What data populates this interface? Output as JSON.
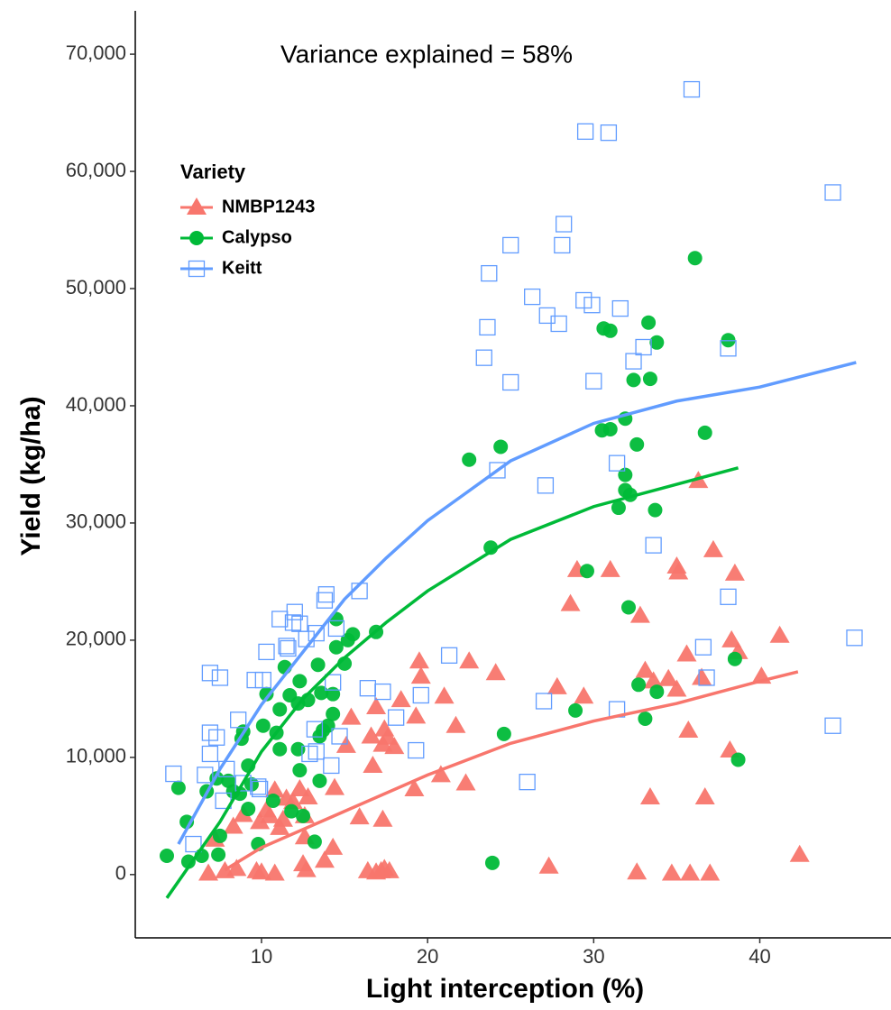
{
  "chart_data": {
    "type": "scatter",
    "annotation": "Variance explained = 58%",
    "x_label": "Light interception (%)",
    "y_label": "Yield (kg/ha)",
    "legend_title": "Variety",
    "legend_position": "upper left",
    "xlim": [
      2.4,
      47.9
    ],
    "ylim": [
      -5400,
      73700
    ],
    "xticks": [
      10,
      20,
      30,
      40
    ],
    "yticks": [
      0,
      {
        "value": 10000,
        "label": "10,000"
      },
      {
        "value": 20000,
        "label": "20,000"
      },
      {
        "value": 30000,
        "label": "30,000"
      },
      {
        "value": 40000,
        "label": "40,000"
      },
      {
        "value": 50000,
        "label": "50,000"
      },
      {
        "value": 60000,
        "label": "60,000"
      },
      {
        "value": 70000,
        "label": "70,000"
      }
    ],
    "series": [
      {
        "name": "NMBP1243",
        "color": "#F8766D",
        "marker": "triangle",
        "x": [
          36.3,
          29,
          31,
          35,
          35.1,
          37.2,
          38.5,
          28.6,
          32.8,
          41.2,
          38.3,
          38.7,
          40.1,
          35.6,
          33.1,
          33.6,
          34.5,
          36.5,
          35,
          29.4,
          27.8,
          35.7,
          38.2,
          33.4,
          36.7,
          42.4,
          27.3,
          32.6,
          34.7,
          35.8,
          37,
          19.5,
          19.6,
          22.5,
          24.1,
          21,
          21.7,
          19.3,
          18.4,
          16.9,
          17.4,
          17.6,
          16.6,
          17.3,
          18,
          15.4,
          15.1,
          16.7,
          19.2,
          20.8,
          22.3,
          15.9,
          17.3,
          14.4,
          12.3,
          11.5,
          11.9,
          10.8,
          10.3,
          10.5,
          11.3,
          11.1,
          9.9,
          8.9,
          8.3,
          7.2,
          12.8,
          12.6,
          12.6,
          14.3,
          13.8,
          12.5,
          12.7,
          16.4,
          17.4,
          17.7,
          17.2,
          16.9,
          9.7,
          10,
          10.8,
          8.5,
          6.8,
          7.8
        ],
        "values": [
          33600,
          26000,
          26000,
          26300,
          25800,
          27700,
          25700,
          23100,
          22100,
          20400,
          20000,
          19000,
          16900,
          18800,
          17400,
          16500,
          16700,
          16800,
          15800,
          15200,
          16000,
          12300,
          10600,
          6600,
          6600,
          1700,
          700,
          200,
          100,
          100,
          100,
          18200,
          16900,
          18200,
          17200,
          15200,
          12700,
          13500,
          14900,
          14300,
          12400,
          11700,
          11800,
          11100,
          10900,
          13400,
          11000,
          9300,
          7300,
          8500,
          7800,
          4900,
          4700,
          7400,
          7300,
          6500,
          6200,
          7200,
          5500,
          5000,
          4700,
          4000,
          4500,
          5100,
          4100,
          3000,
          6600,
          5000,
          3200,
          2300,
          1200,
          900,
          400,
          300,
          500,
          300,
          300,
          200,
          300,
          200,
          100,
          500,
          100,
          300
        ],
        "fit": {
          "x": [
            7.8,
            10,
            15,
            20,
            25,
            30,
            35,
            40,
            42.3
          ],
          "values": [
            400,
            2300,
            5400,
            8500,
            11200,
            13100,
            14600,
            16500,
            17300
          ]
        }
      },
      {
        "name": "Calypso",
        "color": "#00BA38",
        "marker": "circle",
        "x": [
          36.1,
          33.3,
          30.6,
          31,
          33.8,
          38.1,
          33.4,
          32.4,
          31.9,
          30.5,
          31,
          36.7,
          32.6,
          24.4,
          22.5,
          31.9,
          31.9,
          32.2,
          31.5,
          33.7,
          23.8,
          29.6,
          32.1,
          38.5,
          33.8,
          32.7,
          33.1,
          28.9,
          38.7,
          24.6,
          23.9,
          14.5,
          15.5,
          16.9,
          15.2,
          15,
          14.5,
          13.4,
          12.3,
          11.4,
          10.3,
          11.7,
          12.2,
          12.8,
          13.6,
          14.3,
          11.1,
          10.9,
          13.7,
          14,
          14.3,
          13.5,
          12.2,
          11.1,
          10.1,
          8.9,
          8.8,
          12.3,
          13.5,
          9.2,
          7.3,
          8,
          8.7,
          9.4,
          5,
          6.7,
          8.3,
          10.7,
          9.2,
          11.8,
          12.5,
          5.5,
          7.5,
          9.8,
          13.2,
          4.3,
          6.4,
          7.4,
          5.6
        ],
        "values": [
          52600,
          47100,
          46600,
          46400,
          45400,
          45600,
          42300,
          42200,
          38900,
          37900,
          38000,
          37700,
          36700,
          36500,
          35400,
          34100,
          32800,
          32400,
          31300,
          31100,
          27900,
          25900,
          22800,
          18400,
          15600,
          16200,
          13300,
          14000,
          9800,
          12000,
          1000,
          21800,
          20500,
          20700,
          20000,
          18000,
          19400,
          17900,
          16500,
          17700,
          15400,
          15300,
          14600,
          14900,
          15500,
          15400,
          14100,
          12100,
          12300,
          12700,
          13700,
          11800,
          10700,
          10700,
          12700,
          12200,
          11600,
          8900,
          8000,
          9300,
          8200,
          8000,
          6900,
          7700,
          7400,
          7100,
          7100,
          6300,
          5600,
          5400,
          5000,
          4500,
          3300,
          2600,
          2800,
          1600,
          1600,
          1700,
          1100
        ],
        "fit": {
          "x": [
            4.3,
            7.5,
            10,
            12.5,
            15,
            17.5,
            20,
            25,
            30,
            35,
            38.7
          ],
          "values": [
            -2000,
            4500,
            10500,
            15000,
            18500,
            21500,
            24200,
            28600,
            31400,
            33300,
            34700
          ]
        }
      },
      {
        "name": "Keitt",
        "color": "#619CFF",
        "marker": "square",
        "x": [
          35.9,
          29.5,
          30.9,
          44.4,
          28.2,
          28.1,
          25,
          23.7,
          26.3,
          29.4,
          29.9,
          31.6,
          27.2,
          27.9,
          23.6,
          33,
          32.4,
          38.1,
          23.4,
          25,
          30,
          24.2,
          31.4,
          27.1,
          33.6,
          38.1,
          36.6,
          45.7,
          36.8,
          31.4,
          27,
          26,
          44.4,
          21.3,
          19.6,
          19.3,
          18.1,
          17.3,
          16.4,
          15.9,
          13.9,
          13.8,
          12,
          11.1,
          11.9,
          12.3,
          11.5,
          11.6,
          10.3,
          12.7,
          13.3,
          14.5,
          9.6,
          10.1,
          6.9,
          7.5,
          14.3,
          14.7,
          13.3,
          14.2,
          12.9,
          13.2,
          8.6,
          6.9,
          7.3,
          6.9,
          8.9,
          7.7,
          9.9,
          9.8,
          6.6,
          7.9,
          4.7,
          5.9
        ],
        "values": [
          67000,
          63400,
          63300,
          58200,
          55500,
          53700,
          53700,
          51300,
          49300,
          49000,
          48600,
          48300,
          47700,
          47000,
          46700,
          45000,
          43800,
          44900,
          44100,
          42000,
          42100,
          34500,
          35100,
          33200,
          28100,
          23700,
          19400,
          20200,
          16800,
          14100,
          14800,
          7900,
          12700,
          18700,
          15300,
          10600,
          13400,
          15600,
          15900,
          24200,
          23900,
          23400,
          22400,
          21800,
          21500,
          21400,
          19500,
          19300,
          19000,
          20100,
          20600,
          21000,
          16600,
          16600,
          17200,
          16800,
          16400,
          11800,
          10500,
          9300,
          10300,
          12400,
          13200,
          12100,
          11700,
          10300,
          7800,
          6300,
          7300,
          7500,
          8500,
          9000,
          8600,
          2600
        ],
        "fit": {
          "x": [
            5,
            7.5,
            10,
            12.5,
            15,
            17.5,
            20,
            25,
            30,
            35,
            40,
            45.8
          ],
          "values": [
            2600,
            9000,
            14500,
            19000,
            23500,
            27000,
            30200,
            35300,
            38500,
            40400,
            41600,
            43700
          ]
        }
      }
    ]
  }
}
